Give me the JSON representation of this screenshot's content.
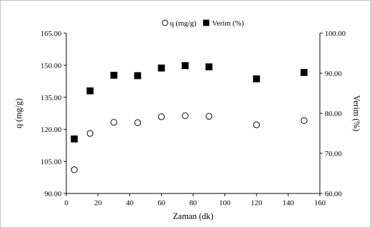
{
  "chart_data": {
    "type": "scatter",
    "x_label": "Zaman (dk)",
    "y_left_label": "q (mg/g)",
    "y_right_label": "Verim (%)",
    "x_range": [
      0,
      160
    ],
    "x_ticks": [
      "0",
      "20",
      "40",
      "60",
      "80",
      "100",
      "120",
      "140",
      "160"
    ],
    "y_left_range": [
      90,
      165
    ],
    "y_left_ticks": [
      "90.00",
      "105.00",
      "120.00",
      "135.00",
      "150.00",
      "165.00"
    ],
    "y_right_range": [
      60,
      100
    ],
    "y_right_ticks": [
      "60.00",
      "70.00",
      "80.00",
      "90.00",
      "100.00"
    ],
    "legend_position": "top-center",
    "grid": false,
    "series": [
      {
        "name": "q (mg/g)",
        "axis": "left",
        "marker": "open-circle",
        "color": "#000000",
        "x": [
          5,
          15,
          30,
          45,
          60,
          75,
          90,
          120,
          150
        ],
        "y": [
          101.1,
          118.1,
          123.3,
          123.1,
          125.9,
          126.4,
          126.1,
          122.1,
          124.1
        ]
      },
      {
        "name": "Verim (%)",
        "axis": "right",
        "marker": "filled-square",
        "color": "#000000",
        "x": [
          5,
          15,
          30,
          45,
          60,
          75,
          90,
          120,
          150
        ],
        "y": [
          73.6,
          85.6,
          89.5,
          89.4,
          91.3,
          91.9,
          91.6,
          88.6,
          90.2
        ]
      }
    ]
  }
}
